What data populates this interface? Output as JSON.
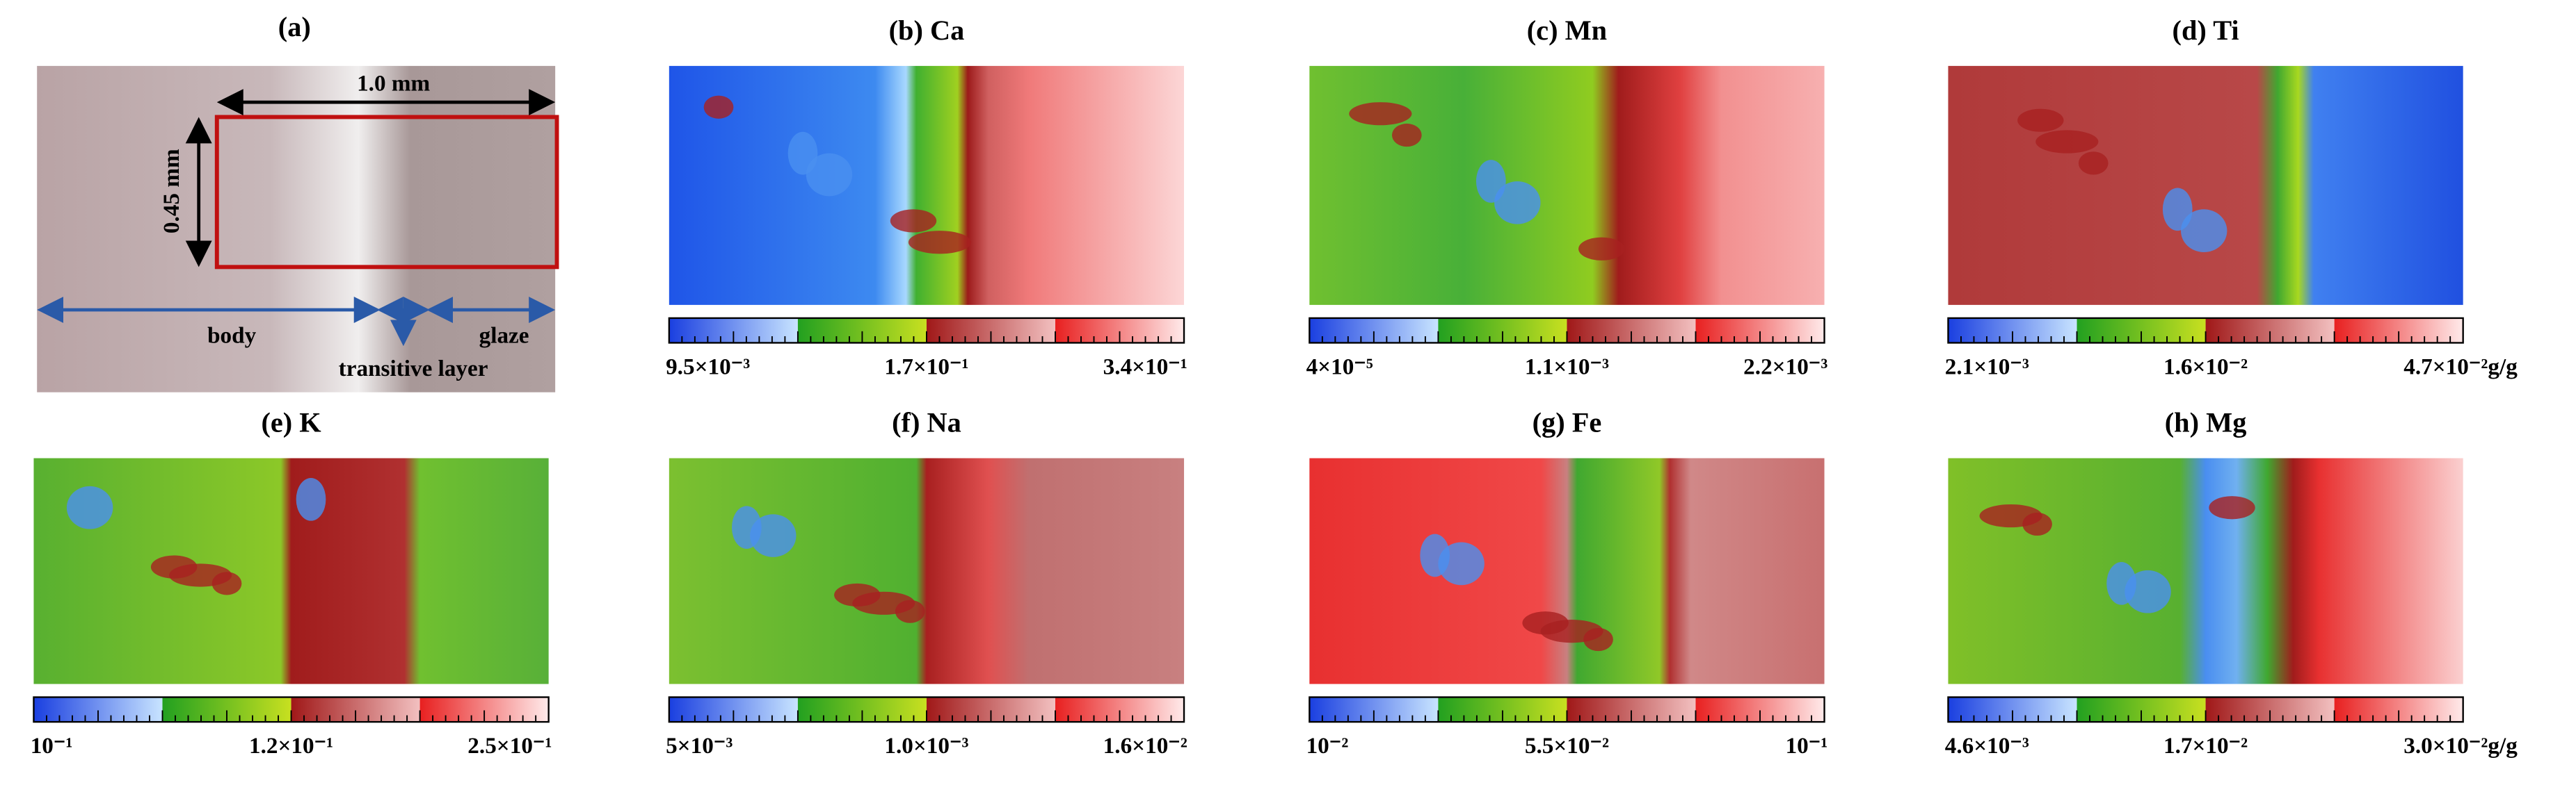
{
  "panel_a": {
    "title": "(a)",
    "width_label": "1.0 mm",
    "height_label": "0.45 mm",
    "body": "body",
    "transitive": "transitive layer",
    "glaze": "glaze"
  },
  "maps": [
    {
      "title": "(b) Ca",
      "min": "9.5×10⁻³",
      "mid": "1.7×10⁻¹",
      "max": "3.4×10⁻¹"
    },
    {
      "title": "(c) Mn",
      "min": "4×10⁻⁵",
      "mid": "1.1×10⁻³",
      "max": "2.2×10⁻³"
    },
    {
      "title": "(d) Ti",
      "min": "2.1×10⁻³",
      "mid": "1.6×10⁻²",
      "max": "4.7×10⁻²g/g"
    },
    {
      "title": "(e) K",
      "min": "10⁻¹",
      "mid": "1.2×10⁻¹",
      "max": "2.5×10⁻¹"
    },
    {
      "title": "(f) Na",
      "min": "5×10⁻³",
      "mid": "1.0×10⁻³",
      "max": "1.6×10⁻²"
    },
    {
      "title": "(g) Fe",
      "min": "10⁻²",
      "mid": "5.5×10⁻²",
      "max": "10⁻¹"
    },
    {
      "title": "(h) Mg",
      "min": "4.6×10⁻³",
      "mid": "1.7×10⁻²",
      "max": "3.0×10⁻²g/g"
    }
  ]
}
